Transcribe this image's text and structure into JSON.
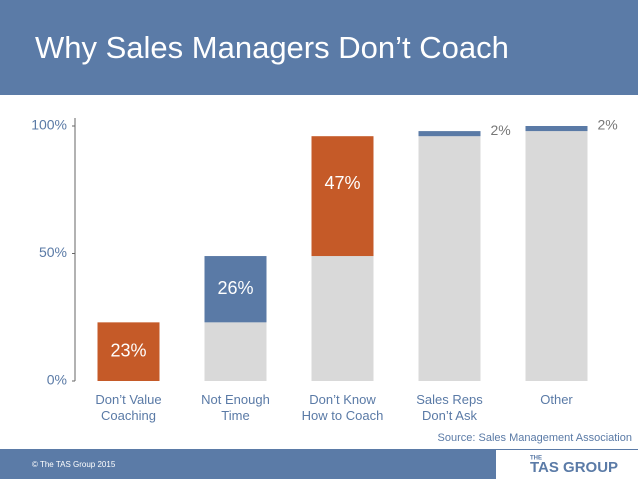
{
  "chart_data": {
    "type": "waterfall",
    "title": "Why Sales Managers Don’t Coach",
    "categories": [
      "Don’t  Value\nCoaching",
      "Not Enough\nTime",
      "Don’t Know\nHow to Coach",
      "Sales Reps\nDon’t Ask",
      "Other"
    ],
    "values": [
      23,
      26,
      47,
      2,
      2
    ],
    "value_labels": [
      "23%",
      "26%",
      "47%",
      "2%",
      "2%"
    ],
    "colors": [
      "#c55a28",
      "#5a7aa6",
      "#c55a28",
      "#5a7aa6",
      "#5a7aa6"
    ],
    "base_color": "#d9d9d9",
    "ylim": [
      0,
      100
    ],
    "yticks": [
      {
        "value": 0,
        "label": "0%"
      },
      {
        "value": 50,
        "label": "50%"
      },
      {
        "value": 100,
        "label": "100%"
      }
    ],
    "source": "Source: Sales Management  Association"
  },
  "footer": {
    "copyright": "© The TAS Group 2015",
    "logo_small": "THE",
    "logo_main": "TAS GROUP"
  }
}
